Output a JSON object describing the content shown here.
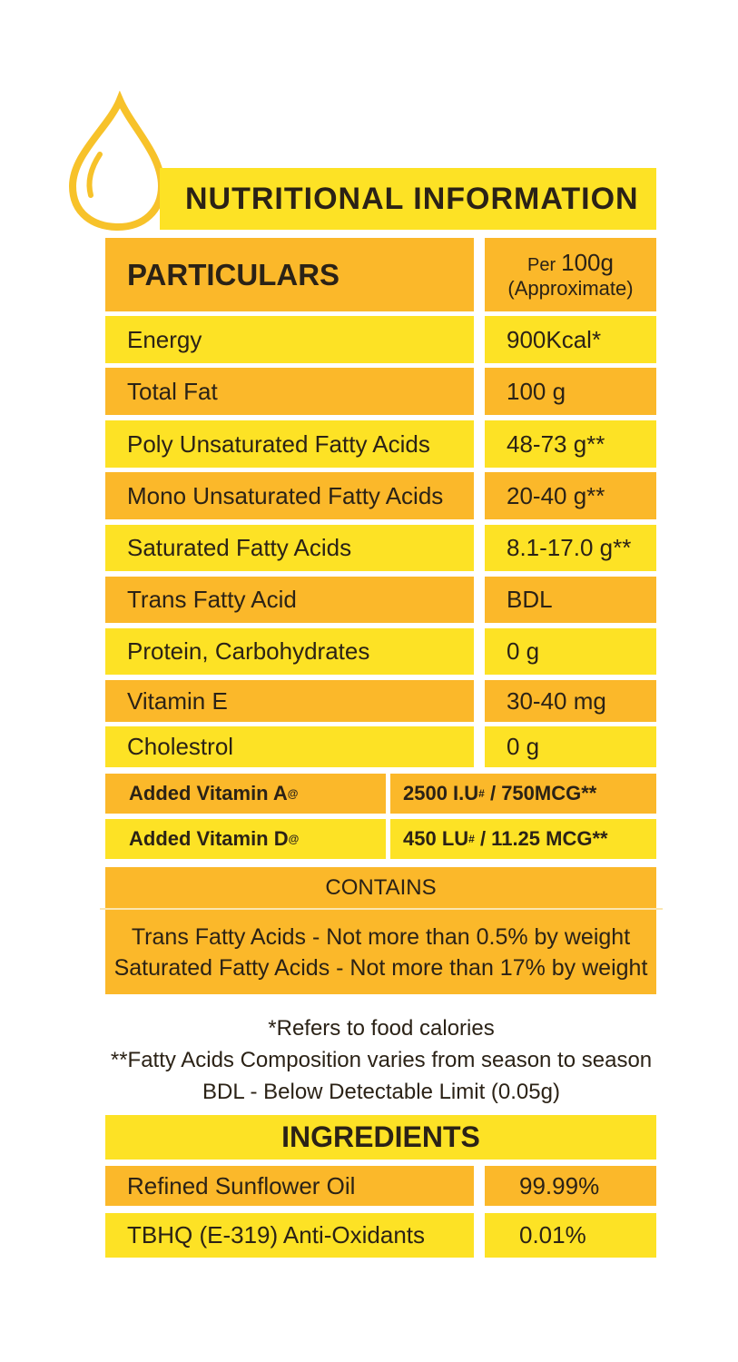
{
  "title": "NUTRITIONAL INFORMATION",
  "header": {
    "particulars": "PARTICULARS",
    "per": "Per",
    "amount": "100g",
    "approx": "(Approximate)"
  },
  "rows": [
    [
      "Energy",
      "900Kcal*"
    ],
    [
      "Total Fat",
      "100 g"
    ],
    [
      "Poly Unsaturated Fatty Acids",
      "48-73 g**"
    ],
    [
      "Mono Unsaturated Fatty Acids",
      "20-40 g**"
    ],
    [
      "Saturated Fatty Acids",
      "8.1-17.0 g**"
    ],
    [
      "Trans Fatty Acid",
      "BDL"
    ],
    [
      "Protein, Carbohydrates",
      "0 g"
    ],
    [
      "Vitamin E",
      "30-40 mg"
    ],
    [
      "Cholestrol",
      "0 g"
    ]
  ],
  "added": [
    {
      "label": "Added Vitamin A",
      "label_mark": "@",
      "value": "2500 I.U",
      "value_mark": "#",
      "value_rest": " / 750MCG**"
    },
    {
      "label": "Added Vitamin D",
      "label_mark": "@",
      "value": "450 LU",
      "value_mark": "#",
      "value_rest": " / 11.25 MCG**"
    }
  ],
  "contains": {
    "title": "CONTAINS",
    "lines": [
      "Trans Fatty Acids - Not more than 0.5% by weight",
      "Saturated Fatty Acids - Not more than 17% by weight"
    ]
  },
  "notes": [
    "*Refers to food calories",
    "**Fatty Acids Composition varies from season to season",
    "BDL - Below Detectable Limit (0.05g)"
  ],
  "ingredients": {
    "title": "INGREDIENTS",
    "rows": [
      [
        "Refined Sunflower Oil",
        "99.99%"
      ],
      [
        "TBHQ (E-319) Anti-Oxidants",
        "0.01%"
      ]
    ]
  }
}
